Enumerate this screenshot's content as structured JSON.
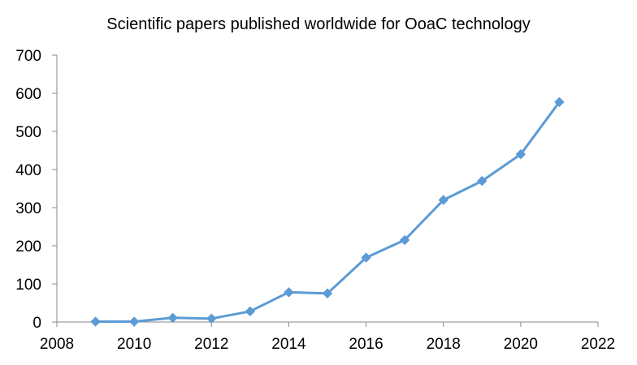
{
  "chart_data": {
    "type": "line",
    "title": "Scientific papers published  worldwide  for OoaC technology",
    "xlabel": "",
    "ylabel": "",
    "xlim": [
      2008,
      2022
    ],
    "ylim": [
      0,
      700
    ],
    "x_ticks": [
      2008,
      2010,
      2012,
      2014,
      2016,
      2018,
      2020,
      2022
    ],
    "y_ticks": [
      0,
      100,
      200,
      300,
      400,
      500,
      600,
      700
    ],
    "grid": false,
    "legend": "none",
    "series": [
      {
        "color": "#5B9BD5",
        "marker": "diamond",
        "x": [
          2009,
          2010,
          2011,
          2012,
          2013,
          2014,
          2015,
          2016,
          2017,
          2018,
          2019,
          2020,
          2021
        ],
        "values": [
          1,
          1,
          11,
          9,
          28,
          78,
          75,
          169,
          215,
          320,
          370,
          440,
          577
        ]
      }
    ]
  }
}
